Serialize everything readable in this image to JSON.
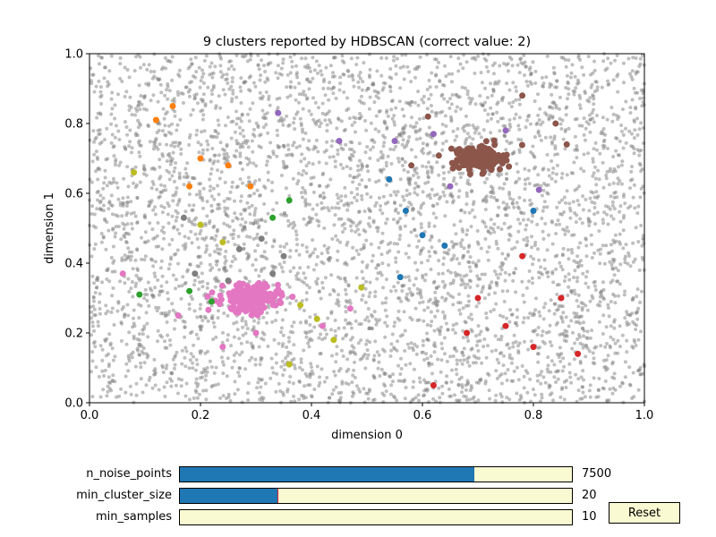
{
  "chart_data": {
    "type": "scatter",
    "title": "9 clusters reported by HDBSCAN (correct value: 2)",
    "xlabel": "dimension 0",
    "ylabel": "dimension 1",
    "xlim": [
      0,
      1
    ],
    "ylim": [
      0,
      1
    ],
    "x_ticks": [
      "0.0",
      "0.2",
      "0.4",
      "0.6",
      "0.8",
      "1.0"
    ],
    "y_ticks": [
      "0.0",
      "0.2",
      "0.4",
      "0.6",
      "0.8",
      "1.0"
    ],
    "grid": false,
    "noise_color": "#808080",
    "clusters": [
      {
        "color": "#8c564b",
        "center": [
          0.7,
          0.7
        ],
        "dense_spread": 0.022,
        "dense_count": 200
      },
      {
        "color": "#e377c2",
        "center": [
          0.29,
          0.3
        ],
        "dense_spread": 0.025,
        "dense_count": 200
      }
    ],
    "sample_points": [
      {
        "x": 0.15,
        "y": 0.85,
        "color": "#ff7f0e"
      },
      {
        "x": 0.2,
        "y": 0.7,
        "color": "#ff7f0e"
      },
      {
        "x": 0.25,
        "y": 0.68,
        "color": "#ff7f0e"
      },
      {
        "x": 0.18,
        "y": 0.62,
        "color": "#ff7f0e"
      },
      {
        "x": 0.29,
        "y": 0.62,
        "color": "#ff7f0e"
      },
      {
        "x": 0.12,
        "y": 0.81,
        "color": "#ff7f0e"
      },
      {
        "x": 0.36,
        "y": 0.58,
        "color": "#2ca02c"
      },
      {
        "x": 0.33,
        "y": 0.53,
        "color": "#2ca02c"
      },
      {
        "x": 0.18,
        "y": 0.32,
        "color": "#2ca02c"
      },
      {
        "x": 0.22,
        "y": 0.29,
        "color": "#2ca02c"
      },
      {
        "x": 0.09,
        "y": 0.31,
        "color": "#2ca02c"
      },
      {
        "x": 0.57,
        "y": 0.55,
        "color": "#1f77b4"
      },
      {
        "x": 0.6,
        "y": 0.48,
        "color": "#1f77b4"
      },
      {
        "x": 0.54,
        "y": 0.64,
        "color": "#1f77b4"
      },
      {
        "x": 0.64,
        "y": 0.45,
        "color": "#1f77b4"
      },
      {
        "x": 0.56,
        "y": 0.36,
        "color": "#1f77b4"
      },
      {
        "x": 0.8,
        "y": 0.55,
        "color": "#1f77b4"
      },
      {
        "x": 0.7,
        "y": 0.3,
        "color": "#d62728"
      },
      {
        "x": 0.75,
        "y": 0.22,
        "color": "#d62728"
      },
      {
        "x": 0.8,
        "y": 0.16,
        "color": "#d62728"
      },
      {
        "x": 0.68,
        "y": 0.2,
        "color": "#d62728"
      },
      {
        "x": 0.85,
        "y": 0.3,
        "color": "#d62728"
      },
      {
        "x": 0.62,
        "y": 0.05,
        "color": "#d62728"
      },
      {
        "x": 0.88,
        "y": 0.14,
        "color": "#d62728"
      },
      {
        "x": 0.78,
        "y": 0.42,
        "color": "#d62728"
      },
      {
        "x": 0.55,
        "y": 0.75,
        "color": "#9467bd"
      },
      {
        "x": 0.65,
        "y": 0.62,
        "color": "#9467bd"
      },
      {
        "x": 0.75,
        "y": 0.78,
        "color": "#9467bd"
      },
      {
        "x": 0.81,
        "y": 0.61,
        "color": "#9467bd"
      },
      {
        "x": 0.34,
        "y": 0.83,
        "color": "#9467bd"
      },
      {
        "x": 0.45,
        "y": 0.75,
        "color": "#9467bd"
      },
      {
        "x": 0.62,
        "y": 0.77,
        "color": "#9467bd"
      },
      {
        "x": 0.78,
        "y": 0.88,
        "color": "#8c564b"
      },
      {
        "x": 0.84,
        "y": 0.8,
        "color": "#8c564b"
      },
      {
        "x": 0.58,
        "y": 0.68,
        "color": "#8c564b"
      },
      {
        "x": 0.86,
        "y": 0.74,
        "color": "#8c564b"
      },
      {
        "x": 0.61,
        "y": 0.82,
        "color": "#8c564b"
      },
      {
        "x": 0.42,
        "y": 0.22,
        "color": "#e377c2"
      },
      {
        "x": 0.3,
        "y": 0.2,
        "color": "#e377c2"
      },
      {
        "x": 0.16,
        "y": 0.25,
        "color": "#e377c2"
      },
      {
        "x": 0.06,
        "y": 0.37,
        "color": "#e377c2"
      },
      {
        "x": 0.47,
        "y": 0.27,
        "color": "#e377c2"
      },
      {
        "x": 0.24,
        "y": 0.16,
        "color": "#e377c2"
      },
      {
        "x": 0.38,
        "y": 0.28,
        "color": "#bcbd22"
      },
      {
        "x": 0.44,
        "y": 0.18,
        "color": "#bcbd22"
      },
      {
        "x": 0.24,
        "y": 0.46,
        "color": "#bcbd22"
      },
      {
        "x": 0.2,
        "y": 0.51,
        "color": "#bcbd22"
      },
      {
        "x": 0.41,
        "y": 0.24,
        "color": "#bcbd22"
      },
      {
        "x": 0.08,
        "y": 0.66,
        "color": "#bcbd22"
      },
      {
        "x": 0.49,
        "y": 0.33,
        "color": "#bcbd22"
      },
      {
        "x": 0.36,
        "y": 0.11,
        "color": "#bcbd22"
      },
      {
        "x": 0.27,
        "y": 0.44,
        "color": "#7f7f7f"
      },
      {
        "x": 0.19,
        "y": 0.37,
        "color": "#7f7f7f"
      },
      {
        "x": 0.35,
        "y": 0.42,
        "color": "#7f7f7f"
      },
      {
        "x": 0.31,
        "y": 0.47,
        "color": "#7f7f7f"
      },
      {
        "x": 0.25,
        "y": 0.35,
        "color": "#7f7f7f"
      },
      {
        "x": 0.17,
        "y": 0.53,
        "color": "#7f7f7f"
      },
      {
        "x": 0.33,
        "y": 0.37,
        "color": "#7f7f7f"
      }
    ]
  },
  "sliders": [
    {
      "label": "n_noise_points",
      "value": "7500",
      "fill_fraction": 0.75
    },
    {
      "label": "min_cluster_size",
      "value": "20",
      "fill_fraction": 0.25
    },
    {
      "label": "min_samples",
      "value": "10",
      "fill_fraction": 0.0
    }
  ],
  "reset_label": "Reset"
}
